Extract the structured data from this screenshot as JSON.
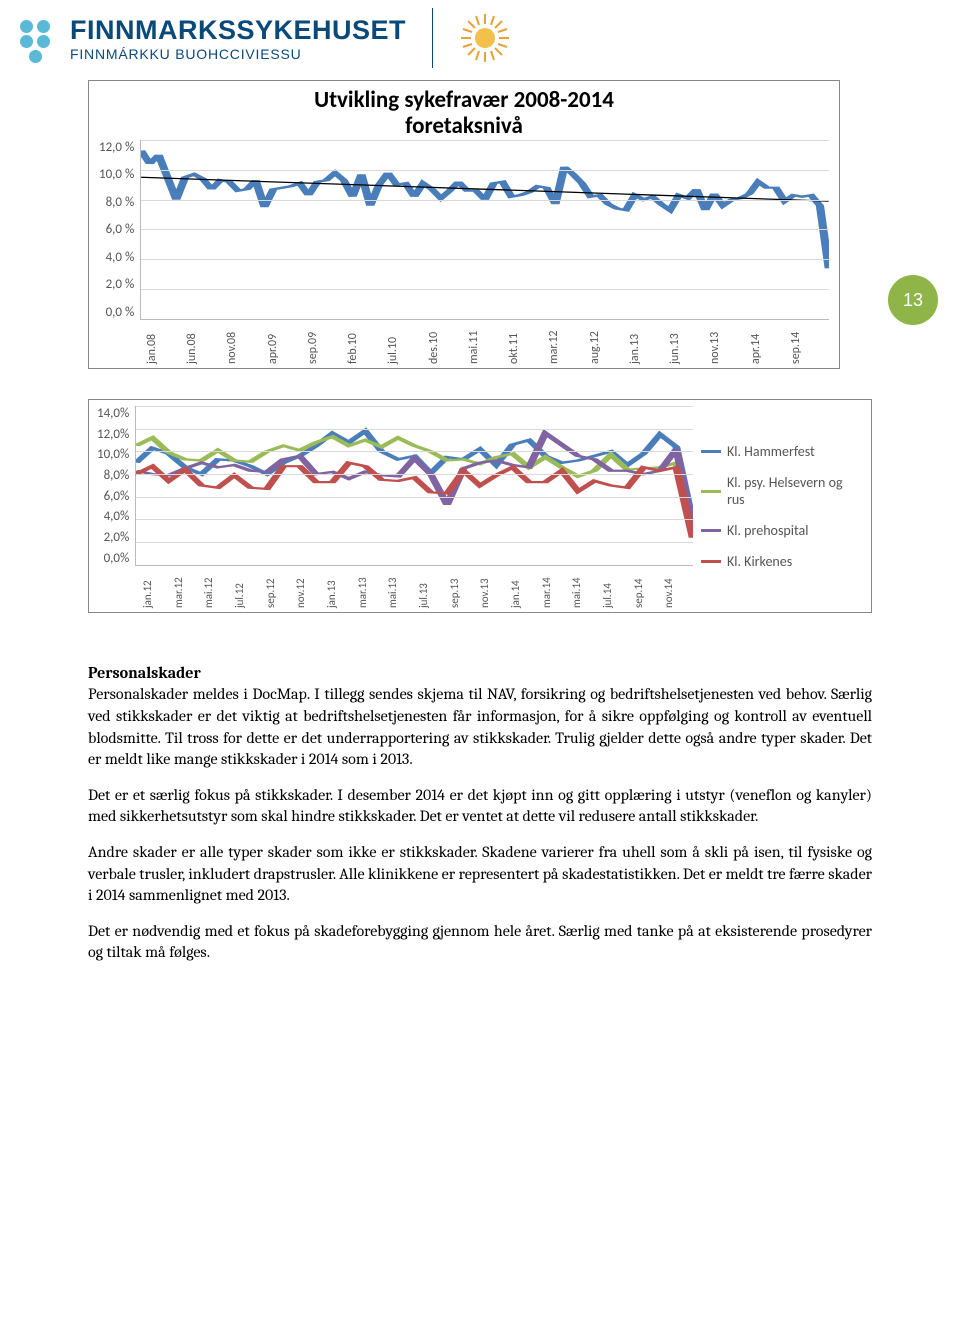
{
  "brand": {
    "main": "FINNMARKSSYKEHUSET",
    "sub": "FINNMÁRKKU BUOHCCIVIESSU",
    "logo_color": "#5bb9d8",
    "text_color": "#0a4a7a"
  },
  "page_number": "13",
  "page_badge_color": "#8fb548",
  "chart1": {
    "title_line1": "Utvikling sykefravær 2008-2014",
    "title_line2": "foretaksnivå",
    "title_fontsize": 23,
    "ylabels": [
      "12,0 %",
      "10,0 %",
      "8,0 %",
      "6,0 %",
      "4,0 %",
      "2,0 %",
      "0,0 %"
    ],
    "ylim": [
      0,
      12
    ],
    "xlabels": [
      "jan.08",
      "jun.08",
      "nov.08",
      "apr.09",
      "sep.09",
      "feb.10",
      "jul.10",
      "des.10",
      "mai.11",
      "okt.11",
      "mar.12",
      "aug.12",
      "jan.13",
      "jun.13",
      "nov.13",
      "apr.14",
      "sep.14"
    ],
    "series_color": "#4a7ebb",
    "trend_color": "#000000",
    "grid_color": "#d9d9d9",
    "values": [
      11.3,
      10.4,
      11.0,
      9.5,
      8.0,
      9.5,
      9.7,
      9.4,
      8.7,
      9.3,
      9.2,
      8.6,
      8.7,
      9.3,
      7.5,
      8.7,
      8.8,
      8.9,
      9.1,
      8.3,
      9.2,
      9.3,
      9.8,
      9.3,
      8.2,
      9.7,
      7.6,
      9.0,
      9.8,
      9.0,
      9.1,
      8.2,
      9.1,
      8.7,
      8.1,
      8.6,
      9.2,
      8.6,
      8.6,
      8.0,
      9.1,
      9.2,
      8.2,
      8.3,
      8.5,
      8.9,
      8.8,
      7.7,
      10.2,
      9.7,
      9.1,
      8.2,
      8.3,
      7.7,
      7.4,
      7.3,
      8.3,
      8.0,
      8.2,
      7.7,
      7.3,
      8.3,
      8.1,
      8.7,
      7.3,
      8.4,
      7.6,
      8.0,
      8.1,
      8.4,
      9.2,
      8.8,
      8.8,
      7.9,
      8.3,
      8.2,
      8.3,
      7.6,
      3.4
    ],
    "trend": {
      "start": 9.5,
      "end": 7.9
    }
  },
  "chart2": {
    "ylabels": [
      "14,0%",
      "12,0%",
      "10,0%",
      "8,0%",
      "6,0%",
      "4,0%",
      "2,0%",
      "0,0%"
    ],
    "ylim": [
      0,
      14
    ],
    "xlabels": [
      "jan.12",
      "mar.12",
      "mai.12",
      "jul.12",
      "sep.12",
      "nov.12",
      "jan.13",
      "mar.13",
      "mai.13",
      "jul.13",
      "sep.13",
      "nov.13",
      "jan.14",
      "mar.14",
      "mai.14",
      "jul.14",
      "sep.14",
      "nov.14"
    ],
    "grid_color": "#d9d9d9",
    "series": [
      {
        "label": "Kl. Hammerfest",
        "color": "#4a7ebb",
        "values": [
          9.0,
          10.3,
          9.8,
          8.6,
          8.0,
          9.3,
          9.2,
          8.7,
          8.0,
          9.0,
          9.6,
          10.5,
          11.6,
          10.8,
          11.8,
          10.0,
          9.3,
          9.6,
          8.1,
          9.5,
          9.3,
          10.2,
          8.8,
          10.6,
          11.0,
          9.6,
          9.0,
          9.2,
          9.6,
          10.0,
          8.8,
          9.8,
          11.5,
          10.4,
          3.8
        ]
      },
      {
        "label": "Kl. psy. Helsevern og rus",
        "color": "#9bbb59",
        "values": [
          10.5,
          11.2,
          9.9,
          9.3,
          9.2,
          10.1,
          9.2,
          9.1,
          10.0,
          10.5,
          10.1,
          10.8,
          11.3,
          10.5,
          11.0,
          10.4,
          11.2,
          10.5,
          10.0,
          9.2,
          9.3,
          8.9,
          9.5,
          9.8,
          8.6,
          9.5,
          8.6,
          7.8,
          8.3,
          9.7,
          8.4,
          8.5,
          8.6,
          9.0,
          3.3
        ]
      },
      {
        "label": "Kl. prehospital",
        "color": "#8064a2",
        "values": [
          8.3,
          8.0,
          7.9,
          8.5,
          9.0,
          8.6,
          8.8,
          8.3,
          8.2,
          9.3,
          9.6,
          8.0,
          8.2,
          7.6,
          8.2,
          7.9,
          7.8,
          9.4,
          8.0,
          5.3,
          8.5,
          9.0,
          9.2,
          8.8,
          8.6,
          11.6,
          10.6,
          9.6,
          9.3,
          8.3,
          8.3,
          8.0,
          8.3,
          10.2,
          3.5
        ]
      },
      {
        "label": "Kl. Kirkenes",
        "color": "#c0504d",
        "values": [
          8.0,
          8.7,
          7.4,
          8.4,
          7.0,
          6.8,
          7.9,
          6.8,
          6.7,
          8.7,
          8.7,
          7.3,
          7.3,
          9.0,
          8.7,
          7.5,
          7.4,
          7.7,
          6.4,
          6.3,
          8.3,
          7.0,
          7.9,
          8.6,
          7.3,
          7.3,
          8.3,
          6.5,
          7.4,
          7.0,
          6.8,
          8.6,
          8.3,
          8.6,
          2.4
        ]
      }
    ]
  },
  "text": {
    "heading": "Personalskader",
    "p1": "Personalskader meldes i DocMap. I tillegg sendes skjema til NAV, forsikring og bedriftshelsetjenesten ved behov. Særlig ved stikkskader er det viktig at bedriftshelsetjenesten får informasjon, for å sikre oppfølging og kontroll av eventuell blodsmitte. Til tross for dette er det underrapportering av stikkskader. Trulig gjelder dette også andre typer skader. Det er meldt like mange stikkskader i 2014 som i 2013.",
    "p2": "Det er et særlig fokus på stikkskader. I desember 2014 er det kjøpt inn og gitt opplæring i utstyr (veneflon og kanyler) med sikkerhetsutstyr som skal hindre stikkskader. Det er ventet at dette vil redusere antall stikkskader.",
    "p3": "Andre skader er alle typer skader som ikke er stikkskader. Skadene varierer fra uhell som å skli på isen, til fysiske og verbale trusler, inkludert drapstrusler. Alle klinikkene er representert på skadestatistikken. Det er meldt tre færre skader i 2014 sammenlignet med 2013.",
    "p4": "Det er nødvendig med et fokus på skadeforebygging gjennom hele året. Særlig med tanke på at eksisterende prosedyrer og tiltak må følges."
  }
}
